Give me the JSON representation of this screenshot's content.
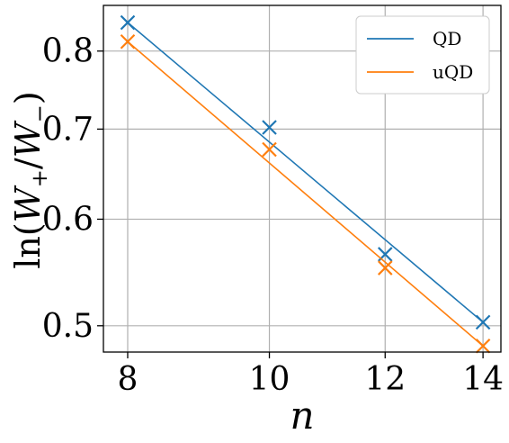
{
  "chart_data": {
    "type": "line",
    "xscale": "log",
    "yscale": "log",
    "xlabel": "n",
    "ylabel": "ln(W+/W−)",
    "xticks": [
      8,
      10,
      12,
      14
    ],
    "yticks": [
      0.5,
      0.6,
      0.7,
      0.8
    ],
    "xlim": [
      7.7,
      14.4
    ],
    "ylim": [
      0.478,
      0.865
    ],
    "grid": true,
    "legend_position": "top-right",
    "series": [
      {
        "name": "QD",
        "color": "#1f77b4",
        "marker_x": [
          8,
          10,
          12,
          14
        ],
        "marker_y": [
          0.84,
          0.702,
          0.565,
          0.503
        ],
        "fit_x": [
          8,
          14
        ],
        "fit_y": [
          0.84,
          0.503
        ]
      },
      {
        "name": "uQD",
        "color": "#ff7f0e",
        "marker_x": [
          8,
          10,
          12,
          14
        ],
        "marker_y": [
          0.813,
          0.676,
          0.552,
          0.483
        ],
        "fit_x": [
          8,
          14
        ],
        "fit_y": [
          0.813,
          0.483
        ]
      }
    ]
  }
}
